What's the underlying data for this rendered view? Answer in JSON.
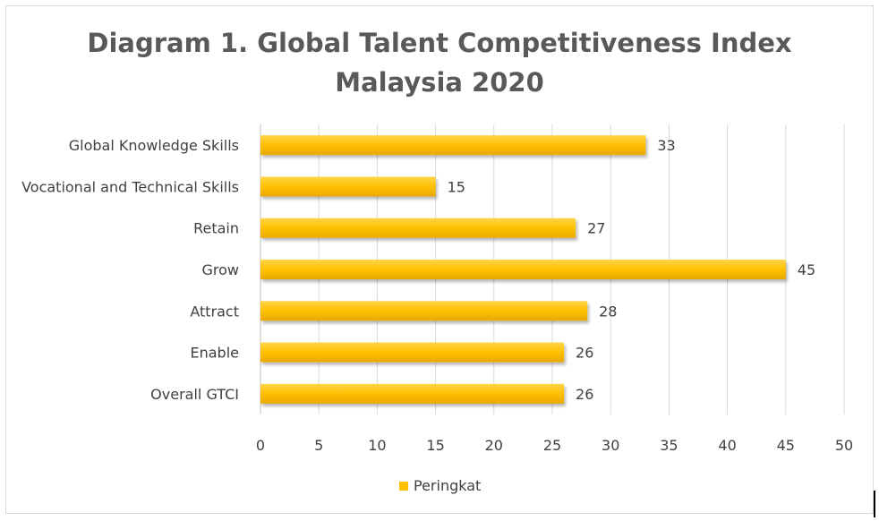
{
  "chart_data": {
    "type": "bar",
    "orientation": "horizontal",
    "title": "Diagram 1. Global Talent Competitiveness Index Malaysia 2020",
    "title_lines": [
      "Diagram 1. Global Talent Competitiveness Index",
      "Malaysia 2020"
    ],
    "categories": [
      "Global Knowledge Skills",
      "Vocational and Technical Skills",
      "Retain",
      "Grow",
      "Attract",
      "Enable",
      "Overall GTCI"
    ],
    "series": [
      {
        "name": "Peringkat",
        "values": [
          33,
          15,
          27,
          45,
          28,
          26,
          26
        ],
        "color": "#FFC000"
      }
    ],
    "xlim": [
      0,
      50
    ],
    "xticks": [
      0,
      5,
      10,
      15,
      20,
      25,
      30,
      35,
      40,
      45,
      50
    ],
    "grid": "vertical",
    "data_labels": true,
    "legend_position": "bottom"
  }
}
